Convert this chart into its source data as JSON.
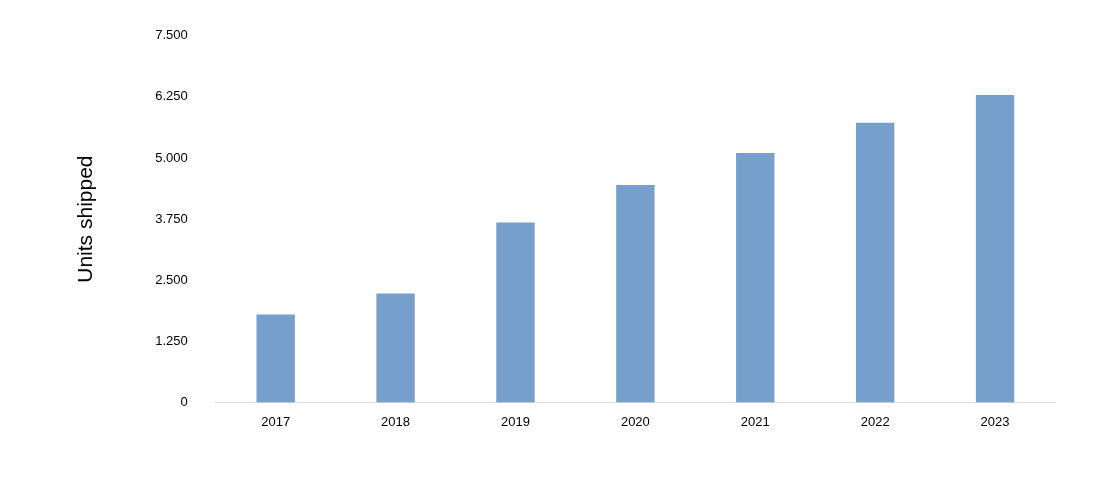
{
  "chart_data": {
    "type": "bar",
    "ylabel": "Units shipped",
    "categories": [
      "2017",
      "2018",
      "2019",
      "2020",
      "2021",
      "2022",
      "2023"
    ],
    "values": [
      1800,
      2230,
      3680,
      4450,
      5100,
      5720,
      6290
    ],
    "color": "#779fcb",
    "ylim": [
      0,
      7500
    ],
    "yticks": [
      {
        "value": 0,
        "label": "0"
      },
      {
        "value": 1250,
        "label": "1.250"
      },
      {
        "value": 2500,
        "label": "2.500"
      },
      {
        "value": 3750,
        "label": "3.750"
      },
      {
        "value": 5000,
        "label": "5.000"
      },
      {
        "value": 6250,
        "label": "6.250"
      },
      {
        "value": 7500,
        "label": "7.500"
      }
    ],
    "grid": false,
    "legend": false
  }
}
